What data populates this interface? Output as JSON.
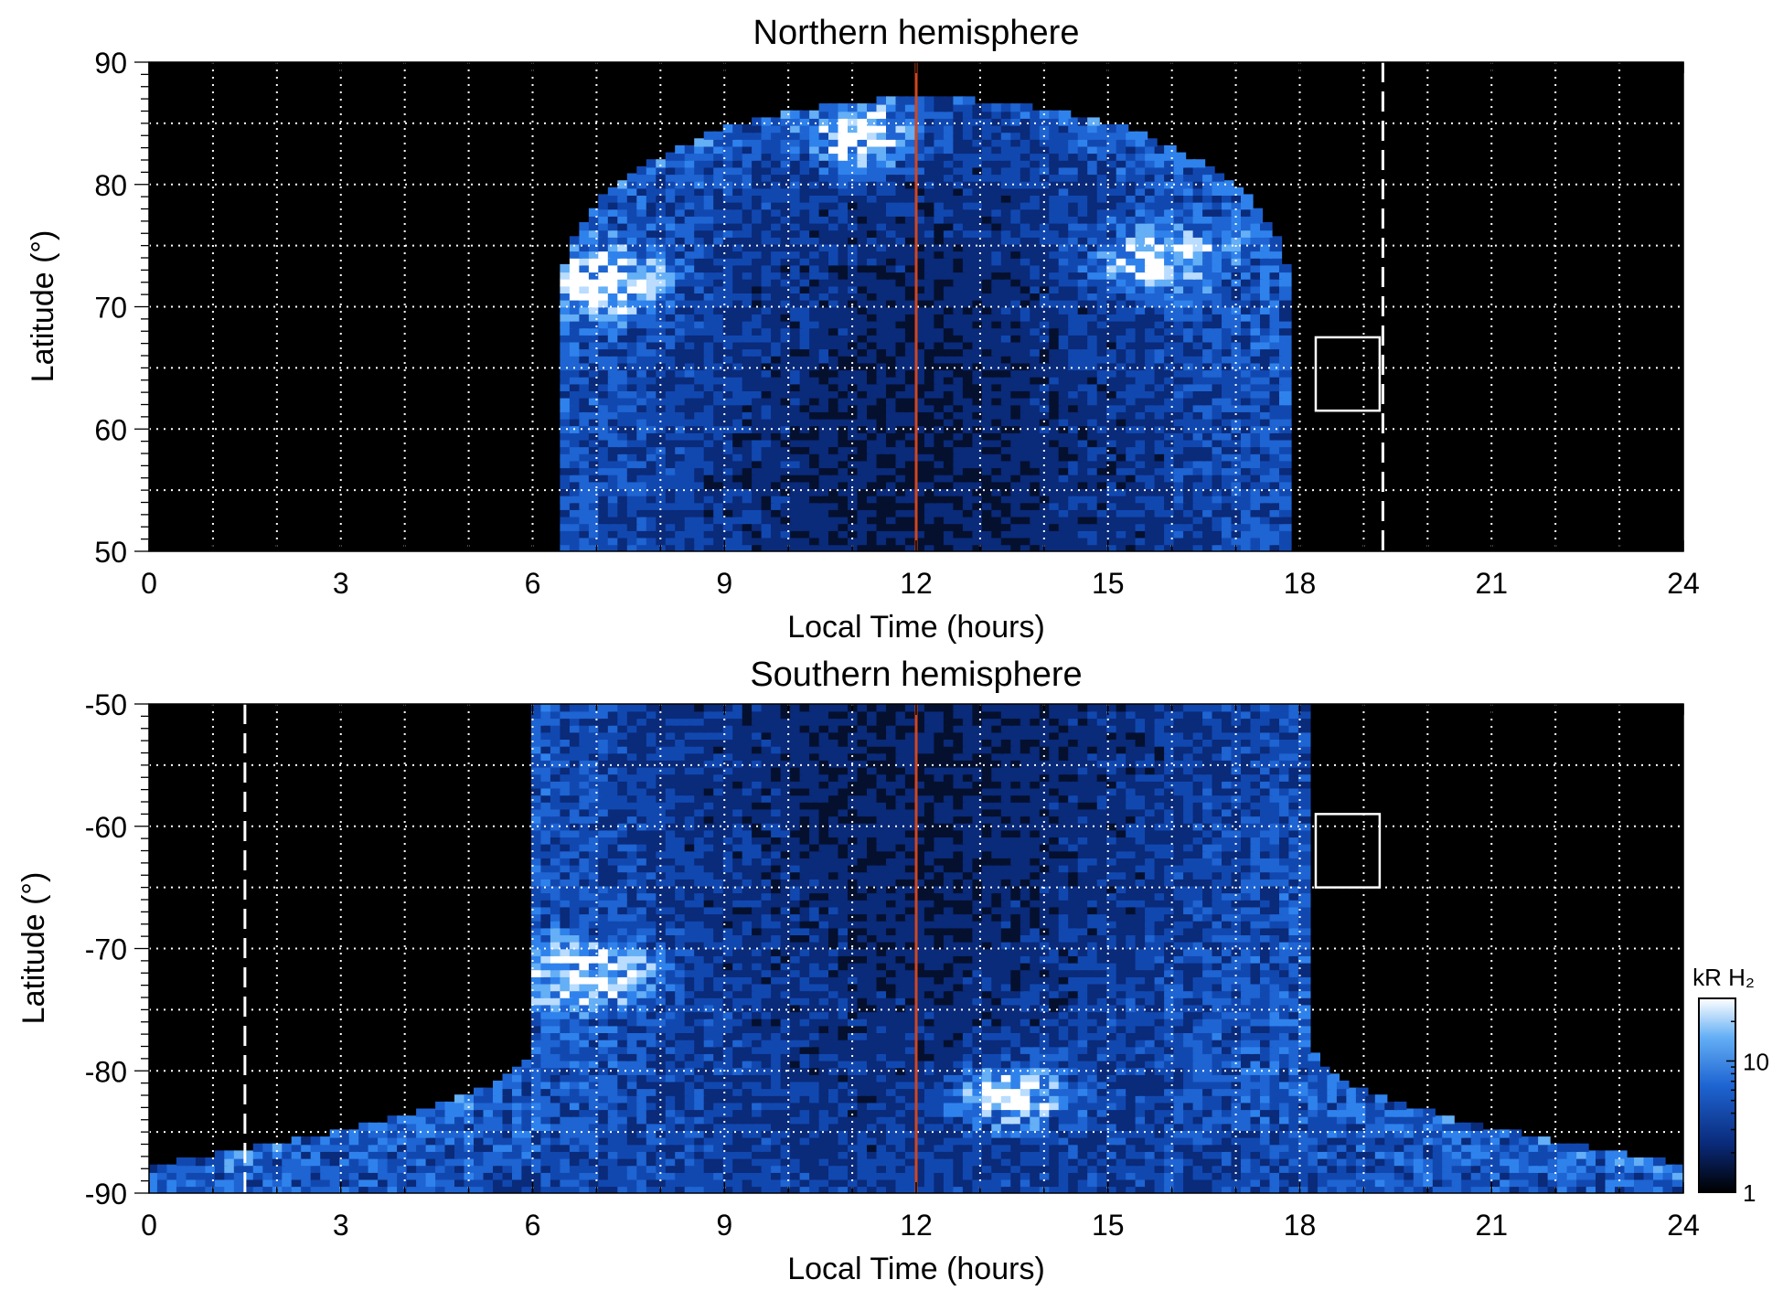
{
  "colors": {
    "background": "#000000",
    "aurora_mid": "#1e78e6",
    "aurora_bright": "#ffffff",
    "noon_line": "#d2461e",
    "grid": "#ffffff"
  },
  "chart_data": [
    {
      "type": "heatmap",
      "title": "Northern hemisphere",
      "xlabel": "Local Time (hours)",
      "ylabel": "Latitude (°)",
      "xlim": [
        0,
        24
      ],
      "ylim": [
        50,
        90
      ],
      "x_ticks": [
        0,
        3,
        6,
        9,
        12,
        15,
        18,
        21,
        24
      ],
      "y_ticks": [
        50,
        60,
        70,
        80,
        90
      ],
      "grid": true,
      "grid_x_step": 1,
      "grid_y_step": 5,
      "noon_line_x": 12,
      "dashed_line": {
        "x": 19.3,
        "y_from": 50,
        "y_to": 90
      },
      "box": {
        "x0": 18.25,
        "x1": 19.25,
        "y0": 61.5,
        "y1": 67.5
      },
      "coverage": {
        "lt_start": 6.5,
        "lt_end": 17.8,
        "lat_top": 87
      },
      "oval_bright_regions": [
        {
          "lt": 7.2,
          "lat": 72
        },
        {
          "lt": 11.2,
          "lat": 84
        },
        {
          "lt": 15.8,
          "lat": 74
        }
      ]
    },
    {
      "type": "heatmap",
      "title": "Southern hemisphere",
      "xlabel": "Local Time (hours)",
      "ylabel": "Latitude (°)",
      "xlim": [
        0,
        24
      ],
      "ylim": [
        -90,
        -50
      ],
      "x_ticks": [
        0,
        3,
        6,
        9,
        12,
        15,
        18,
        21,
        24
      ],
      "y_ticks": [
        -90,
        -80,
        -70,
        -60,
        -50
      ],
      "grid": true,
      "grid_x_step": 1,
      "grid_y_step": 5,
      "noon_line_x": 12,
      "dashed_line": {
        "x": 1.5,
        "y_from": -90,
        "y_to": -50
      },
      "box": {
        "x0": 18.25,
        "x1": 19.25,
        "y0": -65,
        "y1": -59
      },
      "coverage": {
        "lt_start": 6.0,
        "lt_end": 18.2,
        "lat_top": -50
      },
      "oval_bright_regions": [
        {
          "lt": 7.0,
          "lat": -72
        },
        {
          "lt": 13.5,
          "lat": -82
        }
      ],
      "colorbar": {
        "title": "kR H₂",
        "scale": "log",
        "range": [
          1,
          30
        ],
        "ticks": [
          1,
          10
        ],
        "tick_labels": [
          "1",
          "10"
        ]
      }
    }
  ]
}
